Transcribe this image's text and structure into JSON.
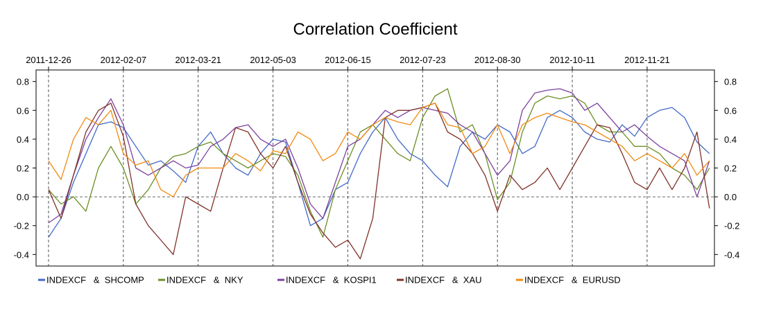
{
  "chart_data": {
    "type": "line",
    "title": "Correlation Coefficient",
    "x_tick_labels": [
      "2011-12-26",
      "2012-02-07",
      "2012-03-21",
      "2012-05-03",
      "2012-06-15",
      "2012-07-23",
      "2012-08-30",
      "2012-10-11",
      "2012-11-21"
    ],
    "x_tick_positions": [
      0,
      30,
      60,
      90,
      120,
      150,
      180,
      210,
      240
    ],
    "x_range": [
      -5,
      267
    ],
    "ylim": [
      -0.48,
      0.88
    ],
    "y_ticks": [
      -0.4,
      -0.2,
      0.0,
      0.2,
      0.4,
      0.6,
      0.8
    ],
    "y_tick_labels": [
      "-0.4",
      "-0.2",
      "0.0",
      "0.2",
      "0.4",
      "0.6",
      "0.8"
    ],
    "reference_line_y": 0.0,
    "grid": "vertical dashed at x ticks",
    "legend_position": "bottom",
    "series": [
      {
        "name": "INDEXCF   &  SHCOMP",
        "color": "#4169c8",
        "x": [
          0,
          5,
          10,
          15,
          20,
          25,
          30,
          35,
          40,
          45,
          50,
          55,
          60,
          65,
          70,
          75,
          80,
          85,
          90,
          95,
          100,
          105,
          110,
          115,
          120,
          125,
          130,
          135,
          140,
          145,
          150,
          155,
          160,
          165,
          170,
          175,
          180,
          185,
          190,
          195,
          200,
          205,
          210,
          215,
          220,
          225,
          230,
          235,
          240,
          245,
          250,
          255,
          260,
          265
        ],
        "values": [
          -0.28,
          -0.15,
          0.1,
          0.3,
          0.5,
          0.52,
          0.48,
          0.35,
          0.22,
          0.25,
          0.18,
          0.1,
          0.35,
          0.45,
          0.3,
          0.2,
          0.15,
          0.3,
          0.4,
          0.38,
          0.1,
          -0.2,
          -0.15,
          0.05,
          0.1,
          0.3,
          0.45,
          0.55,
          0.4,
          0.3,
          0.25,
          0.15,
          0.07,
          0.35,
          0.45,
          0.4,
          0.5,
          0.45,
          0.3,
          0.35,
          0.55,
          0.6,
          0.55,
          0.45,
          0.4,
          0.38,
          0.5,
          0.42,
          0.55,
          0.6,
          0.62,
          0.55,
          0.38,
          0.3
        ]
      },
      {
        "name": "INDEXCF   &  NKY",
        "color": "#6b8e23",
        "x": [
          0,
          5,
          10,
          15,
          20,
          25,
          30,
          35,
          40,
          45,
          50,
          55,
          60,
          65,
          70,
          75,
          80,
          85,
          90,
          95,
          100,
          105,
          110,
          115,
          120,
          125,
          130,
          135,
          140,
          145,
          150,
          155,
          160,
          165,
          170,
          175,
          180,
          185,
          190,
          195,
          200,
          205,
          210,
          215,
          220,
          225,
          230,
          235,
          240,
          245,
          250,
          255,
          260,
          265
        ],
        "values": [
          0.05,
          -0.05,
          0.0,
          -0.1,
          0.2,
          0.35,
          0.2,
          -0.05,
          0.05,
          0.2,
          0.28,
          0.3,
          0.35,
          0.38,
          0.3,
          0.25,
          0.2,
          0.25,
          0.3,
          0.28,
          0.15,
          -0.1,
          -0.28,
          0.05,
          0.25,
          0.45,
          0.5,
          0.4,
          0.3,
          0.25,
          0.55,
          0.7,
          0.75,
          0.45,
          0.5,
          0.3,
          -0.02,
          0.1,
          0.45,
          0.65,
          0.7,
          0.68,
          0.7,
          0.65,
          0.5,
          0.45,
          0.45,
          0.35,
          0.35,
          0.3,
          0.2,
          0.15,
          0.05,
          0.2
        ]
      },
      {
        "name": "INDEXCF   &  KOSPI1",
        "color": "#7b3fa0",
        "x": [
          0,
          5,
          10,
          15,
          20,
          25,
          30,
          35,
          40,
          45,
          50,
          55,
          60,
          65,
          70,
          75,
          80,
          85,
          90,
          95,
          100,
          105,
          110,
          115,
          120,
          125,
          130,
          135,
          140,
          145,
          150,
          155,
          160,
          165,
          170,
          175,
          180,
          185,
          190,
          195,
          200,
          205,
          210,
          215,
          220,
          225,
          230,
          235,
          240,
          245,
          250,
          255,
          260,
          265
        ],
        "values": [
          -0.18,
          -0.12,
          0.15,
          0.4,
          0.55,
          0.68,
          0.5,
          0.2,
          0.15,
          0.2,
          0.25,
          0.2,
          0.22,
          0.35,
          0.4,
          0.48,
          0.5,
          0.4,
          0.35,
          0.4,
          0.2,
          -0.05,
          -0.15,
          0.1,
          0.35,
          0.4,
          0.5,
          0.6,
          0.55,
          0.6,
          0.62,
          0.6,
          0.58,
          0.5,
          0.45,
          0.3,
          0.15,
          0.25,
          0.6,
          0.72,
          0.74,
          0.75,
          0.72,
          0.6,
          0.65,
          0.55,
          0.45,
          0.5,
          0.42,
          0.35,
          0.3,
          0.25,
          0.0,
          0.25
        ]
      },
      {
        "name": "INDEXCF   &  XAU",
        "color": "#7f3028",
        "x": [
          0,
          5,
          10,
          15,
          20,
          25,
          30,
          35,
          40,
          45,
          50,
          55,
          60,
          65,
          70,
          75,
          80,
          85,
          90,
          95,
          100,
          105,
          110,
          115,
          120,
          125,
          130,
          135,
          140,
          145,
          150,
          155,
          160,
          165,
          170,
          175,
          180,
          185,
          190,
          195,
          200,
          205,
          210,
          215,
          220,
          225,
          230,
          235,
          240,
          245,
          250,
          255,
          260,
          265
        ],
        "values": [
          0.05,
          -0.15,
          0.15,
          0.45,
          0.6,
          0.65,
          0.42,
          -0.05,
          -0.2,
          -0.3,
          -0.4,
          0.0,
          -0.05,
          -0.1,
          0.2,
          0.48,
          0.45,
          0.3,
          0.2,
          0.35,
          0.1,
          -0.12,
          -0.25,
          -0.35,
          -0.3,
          -0.43,
          -0.15,
          0.55,
          0.6,
          0.6,
          0.62,
          0.65,
          0.45,
          0.4,
          0.3,
          0.15,
          -0.1,
          0.15,
          0.05,
          0.1,
          0.2,
          0.05,
          0.2,
          0.35,
          0.5,
          0.48,
          0.3,
          0.1,
          0.05,
          0.2,
          0.05,
          0.2,
          0.45,
          -0.08
        ]
      },
      {
        "name": "INDEXCF   &  EURUSD",
        "color": "#f08a10",
        "x": [
          0,
          5,
          10,
          15,
          20,
          25,
          30,
          35,
          40,
          45,
          50,
          55,
          60,
          65,
          70,
          75,
          80,
          85,
          90,
          95,
          100,
          105,
          110,
          115,
          120,
          125,
          130,
          135,
          140,
          145,
          150,
          155,
          160,
          165,
          170,
          175,
          180,
          185,
          190,
          195,
          200,
          205,
          210,
          215,
          220,
          225,
          230,
          235,
          240,
          245,
          250,
          255,
          260,
          265
        ],
        "values": [
          0.25,
          0.12,
          0.4,
          0.55,
          0.5,
          0.6,
          0.3,
          0.22,
          0.25,
          0.05,
          0.0,
          0.15,
          0.2,
          0.2,
          0.2,
          0.3,
          0.25,
          0.18,
          0.32,
          0.3,
          0.45,
          0.4,
          0.25,
          0.3,
          0.45,
          0.4,
          0.5,
          0.55,
          0.52,
          0.5,
          0.62,
          0.65,
          0.5,
          0.48,
          0.3,
          0.35,
          0.5,
          0.3,
          0.5,
          0.55,
          0.58,
          0.55,
          0.52,
          0.5,
          0.45,
          0.4,
          0.35,
          0.25,
          0.3,
          0.25,
          0.2,
          0.3,
          0.15,
          0.25
        ]
      }
    ]
  }
}
